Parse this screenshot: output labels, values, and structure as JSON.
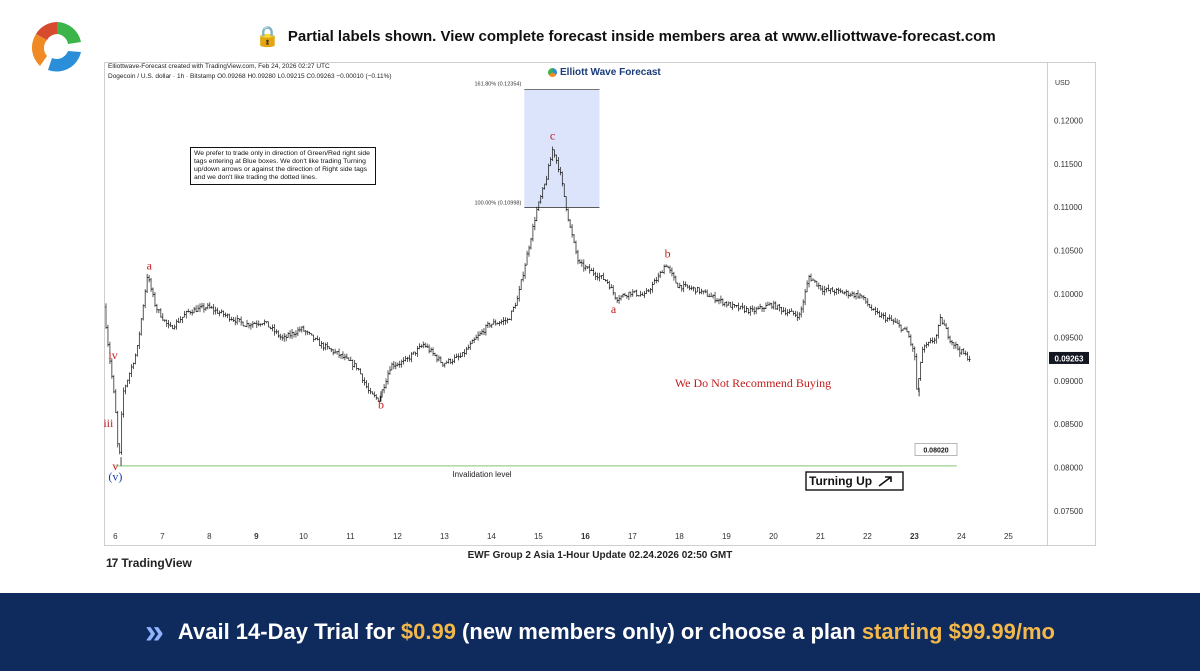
{
  "header": {
    "lock_icon": "lock-icon",
    "banner_text": "Partial labels shown. View complete forecast inside members area at www.elliottwave-forecast.com"
  },
  "chart_header": {
    "created_line": "Elliottwave-Forecast created with TradingView.com, Feb 24, 2026 02:27 UTC",
    "symbol_line": "Dogecoin / U.S. dollar · 1h · Bitstamp  O0.09268  H0.09280  L0.09215  C0.09263  −0.00010 (−0.11%)",
    "fib_top_label": "161.80% (0.12354)",
    "fib_bottom_label": "100.00% (0.10998)",
    "brand": "Elliott Wave Forecast"
  },
  "note": "We prefer to trade only in direction of Green/Red right side tags entering at Blue boxes. We don't like trading Turning up/down arrows or against the direction of Right side tags and we don't like trading the dotted lines.",
  "annotations": {
    "no_buy": "We Do Not Recommend Buying",
    "invalidation_label": "Invalidation level",
    "invalidation_price": "0.08020",
    "turning_up": "Turning Up",
    "current_price": "0.09263"
  },
  "chart_data": {
    "type": "candlestick",
    "title": "Dogecoin / U.S. dollar · 1h · Bitstamp",
    "ylabel": "USD",
    "ylim": [
      0.0735,
      0.1265
    ],
    "xlim": [
      5.8,
      25.8
    ],
    "y_ticks": [
      0.075,
      0.08,
      0.085,
      0.09,
      0.095,
      0.1,
      0.105,
      0.11,
      0.115,
      0.12
    ],
    "y_tick_labels": [
      "0.07500",
      "0.08000",
      "0.08500",
      "0.09000",
      "0.09500",
      "0.10000",
      "0.10500",
      "0.11000",
      "0.11500",
      "0.12000"
    ],
    "x_ticks": [
      6,
      7,
      8,
      9,
      10,
      11,
      12,
      13,
      14,
      15,
      16,
      17,
      18,
      19,
      20,
      21,
      22,
      23,
      24,
      25
    ],
    "x_tick_labels": [
      "6",
      "7",
      "8",
      "9",
      "10",
      "11",
      "12",
      "13",
      "14",
      "15",
      "16",
      "17",
      "18",
      "19",
      "20",
      "21",
      "22",
      "23",
      "24",
      "25"
    ],
    "x_bold": [
      9,
      16,
      23
    ],
    "price_path": [
      [
        5.8,
        0.0985
      ],
      [
        5.9,
        0.0935
      ],
      [
        6.0,
        0.089
      ],
      [
        6.05,
        0.0862
      ],
      [
        6.12,
        0.0802
      ],
      [
        6.2,
        0.0885
      ],
      [
        6.5,
        0.0935
      ],
      [
        6.72,
        0.1022
      ],
      [
        6.9,
        0.0985
      ],
      [
        7.2,
        0.096
      ],
      [
        7.6,
        0.098
      ],
      [
        8.0,
        0.0985
      ],
      [
        8.4,
        0.0975
      ],
      [
        8.8,
        0.0965
      ],
      [
        9.2,
        0.0968
      ],
      [
        9.6,
        0.0948
      ],
      [
        10.0,
        0.096
      ],
      [
        10.4,
        0.0942
      ],
      [
        10.8,
        0.093
      ],
      [
        11.2,
        0.0915
      ],
      [
        11.45,
        0.0885
      ],
      [
        11.65,
        0.0878
      ],
      [
        11.9,
        0.0918
      ],
      [
        12.2,
        0.0922
      ],
      [
        12.6,
        0.0942
      ],
      [
        13.0,
        0.092
      ],
      [
        13.4,
        0.0928
      ],
      [
        13.7,
        0.0948
      ],
      [
        14.0,
        0.0965
      ],
      [
        14.4,
        0.097
      ],
      [
        14.6,
        0.0995
      ],
      [
        14.8,
        0.1045
      ],
      [
        15.0,
        0.1095
      ],
      [
        15.2,
        0.113
      ],
      [
        15.35,
        0.1168
      ],
      [
        15.5,
        0.114
      ],
      [
        15.7,
        0.108
      ],
      [
        15.9,
        0.1035
      ],
      [
        16.2,
        0.1025
      ],
      [
        16.5,
        0.1015
      ],
      [
        16.7,
        0.0995
      ],
      [
        17.0,
        0.1002
      ],
      [
        17.3,
        0.0998
      ],
      [
        17.6,
        0.102
      ],
      [
        17.75,
        0.1035
      ],
      [
        18.0,
        0.101
      ],
      [
        18.4,
        0.1005
      ],
      [
        18.8,
        0.0995
      ],
      [
        19.2,
        0.0985
      ],
      [
        19.6,
        0.098
      ],
      [
        20.0,
        0.0988
      ],
      [
        20.3,
        0.098
      ],
      [
        20.6,
        0.0975
      ],
      [
        20.8,
        0.102
      ],
      [
        21.1,
        0.1005
      ],
      [
        21.5,
        0.1002
      ],
      [
        21.9,
        0.0998
      ],
      [
        22.2,
        0.0978
      ],
      [
        22.6,
        0.0968
      ],
      [
        22.9,
        0.0955
      ],
      [
        23.05,
        0.0928
      ],
      [
        23.1,
        0.0882
      ],
      [
        23.2,
        0.0935
      ],
      [
        23.5,
        0.095
      ],
      [
        23.6,
        0.0972
      ],
      [
        23.8,
        0.0948
      ],
      [
        24.0,
        0.0935
      ],
      [
        24.2,
        0.0926
      ]
    ],
    "fib_zone": {
      "x_start": 14.7,
      "x_end": 16.3,
      "y_low": 0.10998,
      "y_high": 0.12354
    },
    "invalidation_level": 0.0802,
    "current_price": 0.09263,
    "wave_labels": [
      {
        "label": "iv",
        "x": 5.95,
        "y": 0.0925,
        "color": "#c21d1d"
      },
      {
        "label": "iii",
        "x": 5.85,
        "y": 0.0847,
        "color": "#c21d1d"
      },
      {
        "label": "v",
        "x": 6.0,
        "y": 0.0797,
        "color": "#c21d1d"
      },
      {
        "label": "(v)",
        "x": 6.0,
        "y": 0.0785,
        "color": "#1d3aa8"
      },
      {
        "label": "a",
        "x": 6.72,
        "y": 0.1028,
        "color": "#c21d1d"
      },
      {
        "label": "b",
        "x": 11.65,
        "y": 0.0868,
        "color": "#c21d1d"
      },
      {
        "label": "c",
        "x": 15.3,
        "y": 0.1178,
        "color": "#c21d1d"
      },
      {
        "label": "a",
        "x": 16.6,
        "y": 0.0978,
        "color": "#c21d1d"
      },
      {
        "label": "b",
        "x": 17.75,
        "y": 0.1042,
        "color": "#c21d1d"
      }
    ]
  },
  "update_caption": "EWF Group 2 Asia 1-Hour Update 02.24.2026 02:50 GMT",
  "tradingview": {
    "mark": "17",
    "name": "TradingView"
  },
  "footer": {
    "icon": "double-chevron-icon",
    "part1": "Avail 14-Day Trial for ",
    "price1": "$0.99",
    "part2": " (new members only) or choose a plan ",
    "part3": "starting $99.99/mo"
  },
  "colors": {
    "wave_red": "#c21d1d",
    "wave_blue": "#1d3aa8",
    "zone_blue": "#dbe4fb",
    "invalidation_green": "#9ad08e",
    "footer_bg": "#0f2a5c",
    "highlight": "#f2b84b"
  }
}
